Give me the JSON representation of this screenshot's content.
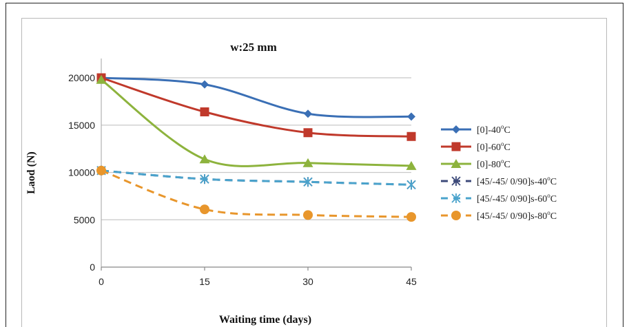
{
  "chart_data": {
    "type": "line",
    "title": "w:25 mm",
    "xlabel": "Waiting time (days)",
    "ylabel": "Laod (N)",
    "x": [
      0,
      15,
      30,
      45
    ],
    "xlim": [
      0,
      45
    ],
    "ylim": [
      0,
      20000
    ],
    "yticks": [
      0,
      5000,
      10000,
      15000,
      20000
    ],
    "xtick_labels": [
      "0",
      "15",
      "30",
      "45"
    ],
    "ytick_labels": [
      "0",
      "5000",
      "10000",
      "15000",
      "20000"
    ],
    "grid": "horizontal",
    "legend_position": "right",
    "series": [
      {
        "name": "[0]-40",
        "suffix": "C",
        "values": [
          20000,
          19300,
          16200,
          15900
        ],
        "color": "#3a6fb5",
        "marker": "diamond",
        "dash": false
      },
      {
        "name": "[0]-60",
        "suffix": "C",
        "values": [
          20000,
          16400,
          14200,
          13800
        ],
        "color": "#c0392b",
        "marker": "square",
        "dash": false
      },
      {
        "name": "[0]-80",
        "suffix": "C",
        "values": [
          19800,
          11400,
          11000,
          10700
        ],
        "color": "#8db33d",
        "marker": "triangle",
        "dash": false
      },
      {
        "name": "[45/-45/ 0/90]s-40",
        "suffix": "C",
        "values": [
          10200,
          9300,
          9000,
          8700
        ],
        "color": "#3d4a7a",
        "marker": "xstar",
        "dash": true
      },
      {
        "name": "[45/-45/ 0/90]s-60",
        "suffix": "C",
        "values": [
          10200,
          9300,
          9000,
          8700
        ],
        "color": "#4aa3cc",
        "marker": "xstar",
        "dash": true
      },
      {
        "name": "[45/-45/ 0/90]s-80",
        "suffix": "C",
        "values": [
          10200,
          6100,
          5500,
          5300
        ],
        "color": "#e8962c",
        "marker": "circle",
        "dash": true
      }
    ]
  }
}
